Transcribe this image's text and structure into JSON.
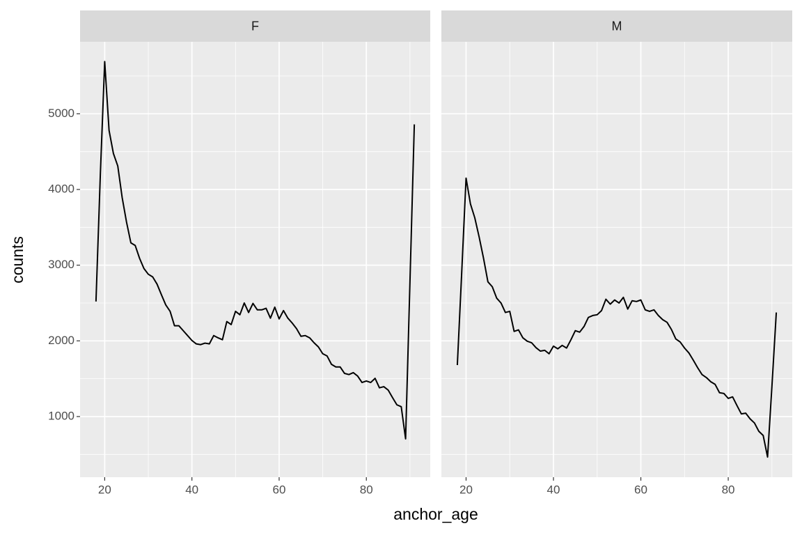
{
  "chart_data": {
    "type": "line",
    "x": [
      18,
      19,
      20,
      21,
      22,
      23,
      24,
      25,
      26,
      27,
      28,
      29,
      30,
      31,
      32,
      33,
      34,
      35,
      36,
      37,
      38,
      39,
      40,
      41,
      42,
      43,
      44,
      45,
      46,
      47,
      48,
      49,
      50,
      51,
      52,
      53,
      54,
      55,
      56,
      57,
      58,
      59,
      60,
      61,
      62,
      63,
      64,
      65,
      66,
      67,
      68,
      69,
      70,
      71,
      72,
      73,
      74,
      75,
      76,
      77,
      78,
      79,
      80,
      81,
      82,
      83,
      84,
      85,
      86,
      87,
      88,
      89,
      90,
      91
    ],
    "series": [
      {
        "name": "F",
        "color": "#000000",
        "values": [
          2520,
          4200,
          5690,
          4780,
          4475,
          4310,
          3895,
          3570,
          3295,
          3260,
          3090,
          2955,
          2880,
          2845,
          2750,
          2610,
          2475,
          2390,
          2200,
          2200,
          2135,
          2070,
          2005,
          1960,
          1950,
          1970,
          1960,
          2070,
          2040,
          2015,
          2255,
          2215,
          2390,
          2345,
          2500,
          2375,
          2495,
          2410,
          2410,
          2430,
          2300,
          2445,
          2290,
          2400,
          2300,
          2235,
          2160,
          2060,
          2070,
          2040,
          1975,
          1920,
          1830,
          1800,
          1690,
          1655,
          1655,
          1570,
          1555,
          1580,
          1535,
          1450,
          1470,
          1450,
          1505,
          1380,
          1395,
          1350,
          1250,
          1155,
          1130,
          705,
          2780,
          4860
        ]
      },
      {
        "name": "M",
        "color": "#000000",
        "values": [
          1680,
          2900,
          4150,
          3810,
          3625,
          3370,
          3090,
          2780,
          2715,
          2565,
          2500,
          2375,
          2390,
          2125,
          2145,
          2040,
          1995,
          1975,
          1910,
          1865,
          1875,
          1830,
          1930,
          1895,
          1940,
          1905,
          2015,
          2135,
          2115,
          2190,
          2310,
          2335,
          2345,
          2400,
          2550,
          2485,
          2540,
          2500,
          2575,
          2420,
          2530,
          2520,
          2540,
          2410,
          2390,
          2410,
          2335,
          2280,
          2245,
          2150,
          2025,
          1985,
          1905,
          1840,
          1745,
          1645,
          1555,
          1515,
          1460,
          1425,
          1315,
          1305,
          1240,
          1260,
          1145,
          1035,
          1045,
          970,
          915,
          805,
          750,
          465,
          1400,
          2375
        ]
      }
    ],
    "x_label": "anchor_age",
    "y_label": "counts",
    "xlim": [
      14.35,
      94.65
    ],
    "xticks": [
      20,
      40,
      60,
      80
    ],
    "ylim": [
      199,
      5951
    ],
    "yticks": [
      1000,
      2000,
      3000,
      4000,
      5000
    ],
    "grid": true
  }
}
